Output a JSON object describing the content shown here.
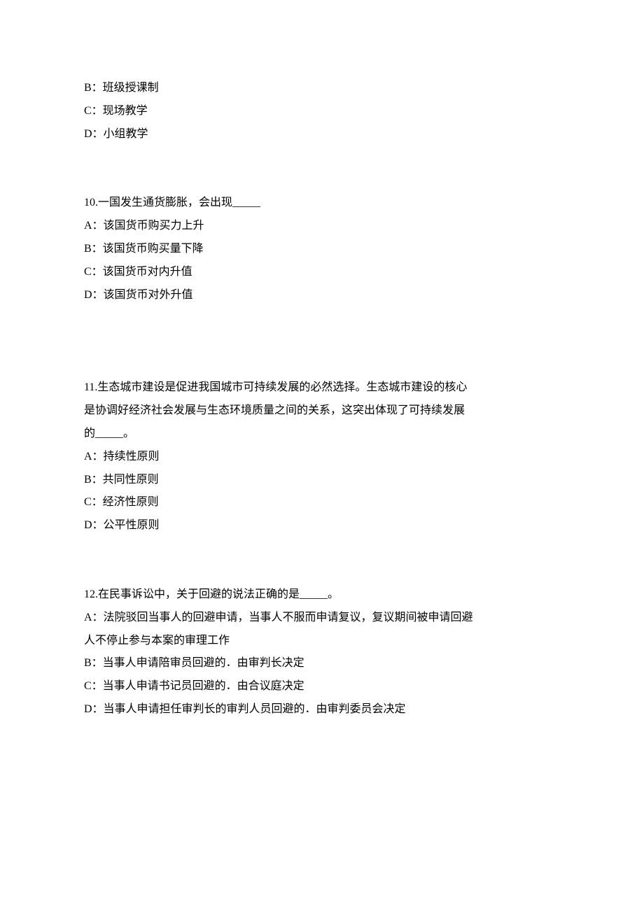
{
  "document": {
    "font_family": "SimSun",
    "font_size": 16,
    "line_height": 2.05,
    "text_color": "#000000",
    "background_color": "#ffffff",
    "q9_options": {
      "b": "B：班级授课制",
      "c": "C：现场教学",
      "d": "D：小组教学"
    },
    "q10": {
      "stem": "10.一国发生通货膨胀，会出现_____",
      "a": "A：该国货币购买力上升",
      "b": "B：该国货币购买量下降",
      "c": "C：该国货币对内升值",
      "d": "D：该国货币对外升值"
    },
    "q11": {
      "stem_line1": "11.生态城市建设是促进我国城市可持续发展的必然选择。生态城市建设的核心",
      "stem_line2": "是协调好经济社会发展与生态环境质量之间的关系，这突出体现了可持续发展",
      "stem_line3": "的_____。",
      "a": "A：持续性原则",
      "b": "B：共同性原则",
      "c": "C：经济性原则",
      "d": "D：公平性原则"
    },
    "q12": {
      "stem": "12.在民事诉讼中，关于回避的说法正确的是_____。",
      "a_line1": "A：法院驳回当事人的回避申请，当事人不服而申请复议，复议期间被申请回避",
      "a_line2": "人不停止参与本案的审理工作",
      "b": "B：当事人申请陪审员回避的．由审判长决定",
      "c": "C：当事人申请书记员回避的．由合议庭决定",
      "d": "D：当事人申请担任审判长的审判人员回避的．由审判委员会决定"
    }
  }
}
